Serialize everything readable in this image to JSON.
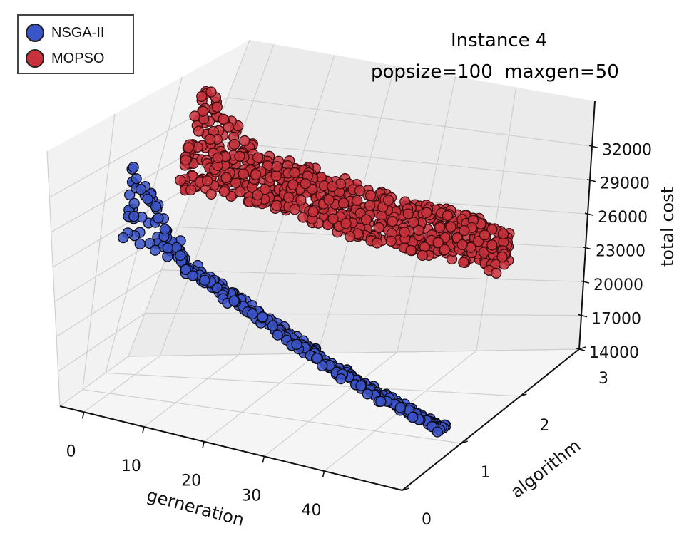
{
  "chart_data": {
    "type": "scatter",
    "title_line1": "Instance 4",
    "title_line2": "popsize=100  maxgen=50",
    "xlabel": "gerneration",
    "ylabel": "algorithm",
    "zlabel": "total cost",
    "xlim": [
      -4,
      53
    ],
    "ylim": [
      0,
      3
    ],
    "zlim": [
      14000,
      36000
    ],
    "xticks": [
      "0",
      "10",
      "20",
      "30",
      "40"
    ],
    "xtick_values": [
      0,
      10,
      20,
      30,
      40
    ],
    "yticks": [
      "0",
      "1",
      "2",
      "3"
    ],
    "ytick_values": [
      0,
      1,
      2,
      3
    ],
    "zticks": [
      "14000",
      "17000",
      "20000",
      "23000",
      "26000",
      "29000",
      "32000"
    ],
    "ztick_values": [
      14000,
      17000,
      20000,
      23000,
      26000,
      29000,
      32000
    ],
    "legend_position": "top-left",
    "series": [
      {
        "name": "NSGA-II",
        "color": "#3b54c8",
        "y": 1,
        "generations": [
          0,
          10,
          20,
          30,
          40,
          50
        ],
        "cost_range": [
          [
            26500,
            32400
          ],
          [
            24600,
            25500
          ],
          [
            22100,
            22800
          ],
          [
            19400,
            20000
          ],
          [
            16900,
            17400
          ],
          [
            14900,
            15300
          ]
        ]
      },
      {
        "name": "MOPSO",
        "color": "#c8323c",
        "y": 2,
        "generations": [
          0,
          10,
          20,
          30,
          40,
          50
        ],
        "cost_range": [
          [
            28000,
            36000
          ],
          [
            27900,
            31600
          ],
          [
            26900,
            30800
          ],
          [
            25900,
            29900
          ],
          [
            25300,
            29300
          ],
          [
            24600,
            28600
          ]
        ]
      }
    ]
  }
}
